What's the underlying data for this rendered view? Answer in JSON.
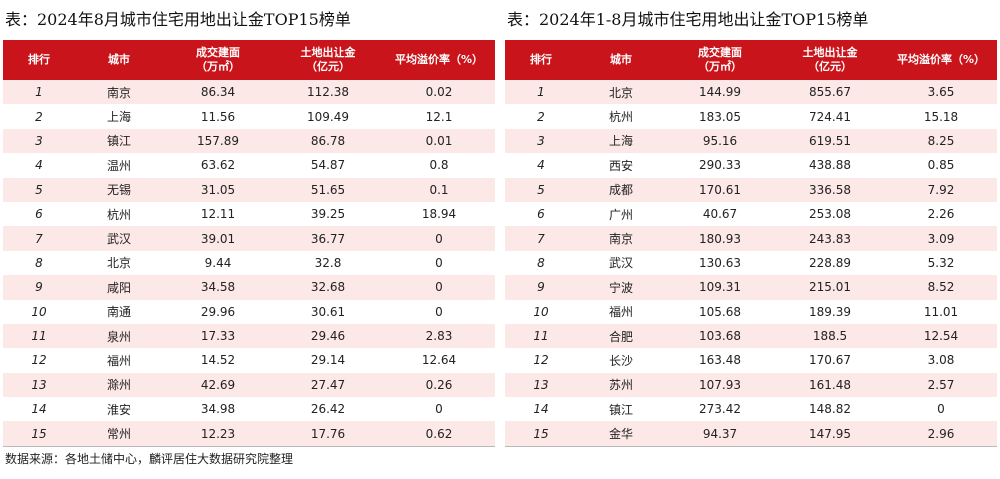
{
  "headers": {
    "rank": "排行",
    "city": "城市",
    "area_line1": "成交建面",
    "area_line2": "（万㎡）",
    "amount_line1": "土地出让金",
    "amount_line2": "（亿元）",
    "premium": "平均溢价率（%）"
  },
  "left_table": {
    "title": "表：2024年8月城市住宅用地出让金TOP15榜单",
    "rows": [
      {
        "rank": "1",
        "city": "南京",
        "area": "86.34",
        "amount": "112.38",
        "premium": "0.02"
      },
      {
        "rank": "2",
        "city": "上海",
        "area": "11.56",
        "amount": "109.49",
        "premium": "12.1"
      },
      {
        "rank": "3",
        "city": "镇江",
        "area": "157.89",
        "amount": "86.78",
        "premium": "0.01"
      },
      {
        "rank": "4",
        "city": "温州",
        "area": "63.62",
        "amount": "54.87",
        "premium": "0.8"
      },
      {
        "rank": "5",
        "city": "无锡",
        "area": "31.05",
        "amount": "51.65",
        "premium": "0.1"
      },
      {
        "rank": "6",
        "city": "杭州",
        "area": "12.11",
        "amount": "39.25",
        "premium": "18.94"
      },
      {
        "rank": "7",
        "city": "武汉",
        "area": "39.01",
        "amount": "36.77",
        "premium": "0"
      },
      {
        "rank": "8",
        "city": "北京",
        "area": "9.44",
        "amount": "32.8",
        "premium": "0"
      },
      {
        "rank": "9",
        "city": "咸阳",
        "area": "34.58",
        "amount": "32.68",
        "premium": "0"
      },
      {
        "rank": "10",
        "city": "南通",
        "area": "29.96",
        "amount": "30.61",
        "premium": "0"
      },
      {
        "rank": "11",
        "city": "泉州",
        "area": "17.33",
        "amount": "29.46",
        "premium": "2.83"
      },
      {
        "rank": "12",
        "city": "福州",
        "area": "14.52",
        "amount": "29.14",
        "premium": "12.64"
      },
      {
        "rank": "13",
        "city": "滁州",
        "area": "42.69",
        "amount": "27.47",
        "premium": "0.26"
      },
      {
        "rank": "14",
        "city": "淮安",
        "area": "34.98",
        "amount": "26.42",
        "premium": "0"
      },
      {
        "rank": "15",
        "city": "常州",
        "area": "12.23",
        "amount": "17.76",
        "premium": "0.62"
      }
    ]
  },
  "right_table": {
    "title": "表：2024年1-8月城市住宅用地出让金TOP15榜单",
    "rows": [
      {
        "rank": "1",
        "city": "北京",
        "area": "144.99",
        "amount": "855.67",
        "premium": "3.65"
      },
      {
        "rank": "2",
        "city": "杭州",
        "area": "183.05",
        "amount": "724.41",
        "premium": "15.18"
      },
      {
        "rank": "3",
        "city": "上海",
        "area": "95.16",
        "amount": "619.51",
        "premium": "8.25"
      },
      {
        "rank": "4",
        "city": "西安",
        "area": "290.33",
        "amount": "438.88",
        "premium": "0.85"
      },
      {
        "rank": "5",
        "city": "成都",
        "area": "170.61",
        "amount": "336.58",
        "premium": "7.92"
      },
      {
        "rank": "6",
        "city": "广州",
        "area": "40.67",
        "amount": "253.08",
        "premium": "2.26"
      },
      {
        "rank": "7",
        "city": "南京",
        "area": "180.93",
        "amount": "243.83",
        "premium": "3.09"
      },
      {
        "rank": "8",
        "city": "武汉",
        "area": "130.63",
        "amount": "228.89",
        "premium": "5.32"
      },
      {
        "rank": "9",
        "city": "宁波",
        "area": "109.31",
        "amount": "215.01",
        "premium": "8.52"
      },
      {
        "rank": "10",
        "city": "福州",
        "area": "105.68",
        "amount": "189.39",
        "premium": "11.01"
      },
      {
        "rank": "11",
        "city": "合肥",
        "area": "103.68",
        "amount": "188.5",
        "premium": "12.54"
      },
      {
        "rank": "12",
        "city": "长沙",
        "area": "163.48",
        "amount": "170.67",
        "premium": "3.08"
      },
      {
        "rank": "13",
        "city": "苏州",
        "area": "107.93",
        "amount": "161.48",
        "premium": "2.57"
      },
      {
        "rank": "14",
        "city": "镇江",
        "area": "273.42",
        "amount": "148.82",
        "premium": "0"
      },
      {
        "rank": "15",
        "city": "金华",
        "area": "94.37",
        "amount": "147.95",
        "premium": "2.96"
      }
    ]
  },
  "source": "数据来源：各地土储中心，麟评居住大数据研究院整理",
  "colors": {
    "header_bg": "#c9141b",
    "header_text": "#ffffff",
    "stripe_bg": "#fce8e7"
  }
}
